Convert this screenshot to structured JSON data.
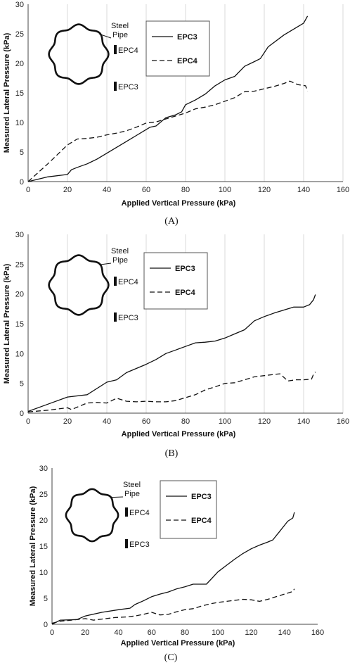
{
  "chart_data": [
    {
      "type": "line",
      "caption": "(A)",
      "xlabel": "Applied Vertical Pressure (kPa)",
      "ylabel": "Measured Lateral Pressure (kPa)",
      "xlim": [
        0,
        160
      ],
      "ylim": [
        0,
        30
      ],
      "xticks": [
        "0",
        "20",
        "40",
        "60",
        "80",
        "100",
        "120",
        "140",
        "160"
      ],
      "yticks": [
        "0",
        "5",
        "10",
        "15",
        "20",
        "25",
        "30"
      ],
      "grid": "vertical",
      "legend_position": "top-center",
      "inset": {
        "pipe_label_1": "Steel",
        "pipe_label_2": "Pipe",
        "sensor_top": "EPC4",
        "sensor_bottom": "EPC3"
      },
      "series": [
        {
          "name": "EPC3",
          "style": "solid",
          "x": [
            0,
            10,
            20,
            22,
            25,
            30,
            35,
            40,
            45,
            50,
            55,
            60,
            62,
            65,
            70,
            75,
            78,
            80,
            85,
            90,
            95,
            100,
            105,
            110,
            115,
            118,
            122,
            130,
            140,
            142
          ],
          "y": [
            0,
            0.8,
            1.2,
            2.0,
            2.4,
            3.0,
            3.8,
            4.8,
            5.8,
            6.8,
            7.8,
            8.8,
            9.2,
            9.4,
            10.8,
            11.3,
            11.8,
            13.0,
            13.8,
            14.8,
            16.2,
            17.2,
            17.8,
            19.5,
            20.3,
            20.8,
            22.8,
            24.8,
            26.8,
            28.0
          ]
        },
        {
          "name": "EPC4",
          "style": "dashed",
          "x": [
            0,
            10,
            20,
            25,
            30,
            35,
            40,
            45,
            50,
            55,
            60,
            65,
            70,
            80,
            85,
            90,
            95,
            100,
            105,
            110,
            115,
            120,
            125,
            130,
            133,
            137,
            141,
            142
          ],
          "y": [
            0,
            3.0,
            6.2,
            7.2,
            7.3,
            7.5,
            7.9,
            8.2,
            8.6,
            9.2,
            9.9,
            10.1,
            10.6,
            11.6,
            12.3,
            12.6,
            13.0,
            13.6,
            14.2,
            15.2,
            15.3,
            15.7,
            16.1,
            16.6,
            17.0,
            16.4,
            16.2,
            15.3
          ]
        }
      ]
    },
    {
      "type": "line",
      "caption": "(B)",
      "xlabel": "Applied Vertical Pressure (kPa)",
      "ylabel": "Measured Lateral Pressure (kPa)",
      "xlim": [
        0,
        160
      ],
      "ylim": [
        0,
        30
      ],
      "xticks": [
        "0",
        "20",
        "40",
        "60",
        "80",
        "100",
        "120",
        "140",
        "160"
      ],
      "yticks": [
        "0",
        "5",
        "10",
        "15",
        "20",
        "25",
        "30"
      ],
      "grid": "vertical",
      "legend_position": "top-center",
      "inset": {
        "pipe_label_1": "Steel",
        "pipe_label_2": "Pipe",
        "sensor_top": "EPC4",
        "sensor_bottom": "EPC3"
      },
      "series": [
        {
          "name": "EPC3",
          "style": "solid",
          "x": [
            0,
            10,
            20,
            30,
            40,
            45,
            50,
            55,
            60,
            65,
            70,
            75,
            80,
            85,
            90,
            95,
            100,
            105,
            110,
            115,
            120,
            125,
            130,
            135,
            140,
            143,
            145,
            146
          ],
          "y": [
            0.3,
            1.5,
            2.7,
            3.1,
            5.2,
            5.6,
            6.8,
            7.5,
            8.2,
            9.0,
            10.0,
            10.6,
            11.2,
            11.8,
            11.9,
            12.1,
            12.6,
            13.3,
            14.0,
            15.5,
            16.2,
            16.8,
            17.3,
            17.8,
            17.8,
            18.2,
            19.0,
            19.9
          ]
        },
        {
          "name": "EPC4",
          "style": "dashed",
          "x": [
            0,
            10,
            20,
            22,
            30,
            35,
            40,
            45,
            50,
            55,
            60,
            65,
            70,
            75,
            80,
            85,
            90,
            95,
            100,
            105,
            110,
            115,
            120,
            125,
            128,
            132,
            136,
            140,
            144,
            145,
            146
          ],
          "y": [
            0.2,
            0.5,
            0.9,
            0.6,
            1.7,
            1.8,
            1.7,
            2.5,
            2.0,
            1.9,
            2.0,
            1.9,
            1.9,
            2.1,
            2.6,
            3.1,
            3.9,
            4.4,
            5.0,
            5.1,
            5.6,
            6.1,
            6.3,
            6.5,
            6.6,
            5.4,
            5.6,
            5.6,
            5.7,
            6.5,
            6.9
          ]
        }
      ]
    },
    {
      "type": "line",
      "caption": "(C)",
      "xlabel": "Applied Vertical Pressure (kPa)",
      "ylabel": "Measured Lateral Pressure (kPa)",
      "xlim": [
        0,
        160
      ],
      "ylim": [
        0,
        30
      ],
      "xticks": [
        "0",
        "20",
        "40",
        "60",
        "80",
        "100",
        "120",
        "140",
        "160"
      ],
      "yticks": [
        "0",
        "5",
        "10",
        "15",
        "20",
        "25",
        "30"
      ],
      "grid": "none",
      "legend_position": "top-center",
      "inset": {
        "pipe_label_1": "Steel",
        "pipe_label_2": "Pipe",
        "sensor_top": "EPC4",
        "sensor_bottom": "EPC3"
      },
      "series": [
        {
          "name": "EPC3",
          "style": "solid",
          "x": [
            0,
            5,
            15,
            20,
            30,
            40,
            47,
            50,
            55,
            60,
            65,
            70,
            75,
            80,
            85,
            88,
            93,
            100,
            105,
            110,
            115,
            120,
            125,
            130,
            133,
            137,
            142,
            145,
            146
          ],
          "y": [
            0,
            0.8,
            0.9,
            1.6,
            2.3,
            2.8,
            3.1,
            3.8,
            4.5,
            5.3,
            5.8,
            6.2,
            6.8,
            7.2,
            7.7,
            7.7,
            7.7,
            10.1,
            11.3,
            12.5,
            13.6,
            14.5,
            15.2,
            15.8,
            16.2,
            17.8,
            19.8,
            20.4,
            21.5
          ]
        },
        {
          "name": "EPC4",
          "style": "dashed",
          "x": [
            0,
            5,
            12,
            20,
            25,
            30,
            38,
            45,
            50,
            55,
            60,
            65,
            70,
            75,
            80,
            85,
            90,
            95,
            100,
            105,
            110,
            115,
            120,
            125,
            130,
            135,
            140,
            145,
            146
          ],
          "y": [
            0.2,
            0.6,
            0.8,
            1.1,
            0.8,
            1.0,
            1.3,
            1.4,
            1.6,
            1.9,
            2.3,
            1.8,
            1.9,
            2.4,
            2.8,
            3.0,
            3.5,
            3.9,
            4.2,
            4.4,
            4.6,
            4.8,
            4.7,
            4.4,
            4.8,
            5.3,
            5.8,
            6.3,
            6.8
          ]
        }
      ]
    }
  ]
}
